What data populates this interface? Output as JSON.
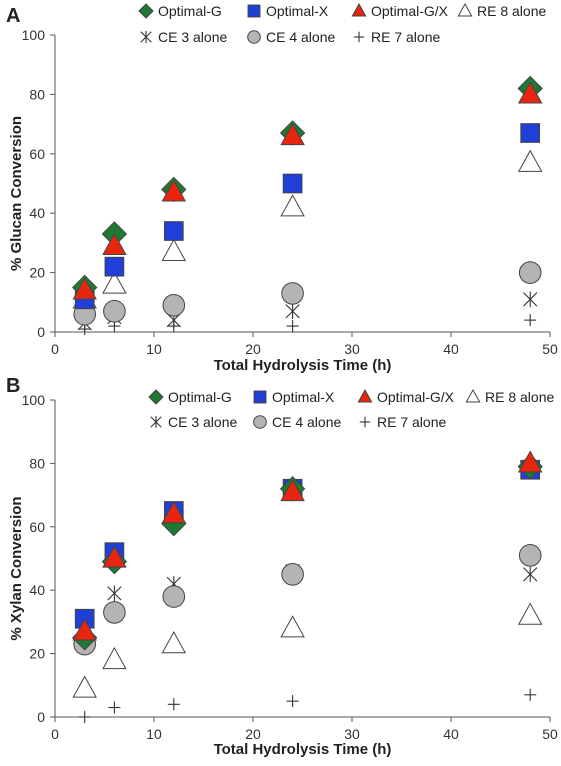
{
  "figure": {
    "panels": [
      "A",
      "B"
    ]
  },
  "legend_entries": [
    "Optimal-G",
    "Optimal-X",
    "Optimal-G/X",
    "RE 8 alone",
    "CE 3 alone",
    "CE 4 alone",
    "RE 7 alone"
  ],
  "colors": {
    "optimal_g": "#1e7a32",
    "optimal_x": "#1f3fd6",
    "optimal_gx": "#e8260f",
    "re8": "#ffffff",
    "ce4": "#b4b4b4",
    "marker_stroke": "#444444",
    "axis": "#555555"
  },
  "chart_data": [
    {
      "panel": "A",
      "type": "scatter",
      "xlabel": "Total Hydrolysis Time (h)",
      "ylabel": "% Glucan Conversion",
      "xlim": [
        0,
        50
      ],
      "ylim": [
        0,
        100
      ],
      "xticks": [
        0,
        10,
        20,
        30,
        40,
        50
      ],
      "yticks": [
        0,
        20,
        40,
        60,
        80,
        100
      ],
      "grid": false,
      "legend_position": "top",
      "x": [
        3,
        6,
        12,
        24,
        48
      ],
      "series": [
        {
          "name": "Optimal-G",
          "marker": "diamond",
          "values": [
            15,
            33,
            48,
            67,
            82
          ]
        },
        {
          "name": "Optimal-X",
          "marker": "square",
          "values": [
            11,
            22,
            34,
            50,
            67
          ]
        },
        {
          "name": "Optimal-G/X",
          "marker": "triangle",
          "values": [
            14,
            29,
            47,
            66,
            80
          ]
        },
        {
          "name": "RE 8 alone",
          "marker": "triangle-open",
          "values": [
            11,
            16,
            27,
            42,
            57
          ]
        },
        {
          "name": "CE 3 alone",
          "marker": "star",
          "values": [
            3,
            5,
            4,
            7,
            11
          ]
        },
        {
          "name": "CE 4 alone",
          "marker": "circle",
          "values": [
            6,
            7,
            9,
            13,
            20
          ]
        },
        {
          "name": "RE 7 alone",
          "marker": "plus",
          "values": [
            1,
            2,
            2,
            2,
            4
          ]
        }
      ]
    },
    {
      "panel": "B",
      "type": "scatter",
      "xlabel": "Total Hydrolysis Time (h)",
      "ylabel": "% Xylan Conversion",
      "xlim": [
        0,
        50
      ],
      "ylim": [
        0,
        100
      ],
      "xticks": [
        0,
        10,
        20,
        30,
        40,
        50
      ],
      "yticks": [
        0,
        20,
        40,
        60,
        80,
        100
      ],
      "grid": false,
      "legend_position": "top",
      "x": [
        3,
        6,
        12,
        24,
        48
      ],
      "series": [
        {
          "name": "Optimal-G",
          "marker": "diamond",
          "values": [
            25,
            49,
            61,
            72,
            79
          ]
        },
        {
          "name": "Optimal-X",
          "marker": "square",
          "values": [
            31,
            52,
            65,
            72,
            78
          ]
        },
        {
          "name": "Optimal-G/X",
          "marker": "triangle",
          "values": [
            27,
            50,
            64,
            71,
            80
          ]
        },
        {
          "name": "RE 8 alone",
          "marker": "triangle-open",
          "values": [
            9,
            18,
            23,
            28,
            32
          ]
        },
        {
          "name": "CE 3 alone",
          "marker": "star",
          "values": [
            28,
            39,
            42,
            46,
            45
          ]
        },
        {
          "name": "CE 4 alone",
          "marker": "circle",
          "values": [
            23,
            33,
            38,
            45,
            51
          ]
        },
        {
          "name": "RE 7 alone",
          "marker": "plus",
          "values": [
            0,
            3,
            4,
            5,
            7
          ]
        }
      ]
    }
  ]
}
